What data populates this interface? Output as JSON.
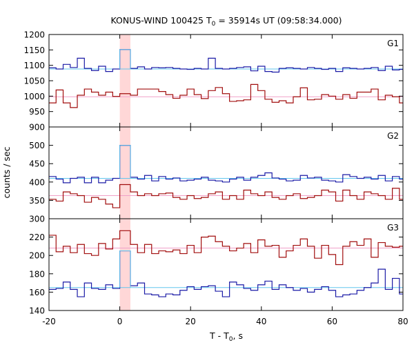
{
  "chart_data": {
    "type": "line",
    "title_main": "KONUS-WIND 100425 T",
    "title_sub": "0",
    "title_rest": " = 35914s UT (09:58:34.000)",
    "xlabel_main": "T - T",
    "xlabel_sub": "0",
    "xlabel_rest": ", s",
    "ylabel": "counts / sec",
    "xlim": [
      -20,
      80
    ],
    "x_ticks": [
      "-20",
      "0",
      "20",
      "40",
      "60",
      "80"
    ],
    "highlight_interval": [
      0,
      3
    ],
    "colors": {
      "blue": "#1a1aa6",
      "red": "#a10c0c",
      "cyan": "#62c6ee",
      "pink": "#f0a0c8",
      "highlight": "#ffd7d7"
    },
    "panels": [
      {
        "label": "G1",
        "ylim": [
          900,
          1200
        ],
        "y_ticks": [
          "900",
          "950",
          "1000",
          "1050",
          "1100",
          "1150",
          "1200"
        ],
        "bin_edges": [
          -20,
          -18,
          -16,
          -14,
          -12,
          -10,
          -8,
          -6,
          -4,
          -2,
          0,
          3,
          5,
          7,
          9,
          11,
          13,
          15,
          17,
          19,
          21,
          23,
          25,
          27,
          29,
          31,
          33,
          35,
          37,
          39,
          41,
          43,
          45,
          47,
          49,
          51,
          53,
          55,
          57,
          59,
          61,
          63,
          65,
          67,
          69,
          71,
          73,
          75,
          77,
          79,
          80
        ],
        "blue": [
          1092,
          1088,
          1103,
          1093,
          1123,
          1090,
          1083,
          1097,
          1080,
          1088,
          1151,
          1090,
          1095,
          1088,
          1093,
          1092,
          1093,
          1090,
          1088,
          1087,
          1090,
          1088,
          1123,
          1090,
          1088,
          1090,
          1093,
          1095,
          1082,
          1097,
          1080,
          1078,
          1090,
          1092,
          1090,
          1088,
          1093,
          1090,
          1087,
          1090,
          1080,
          1092,
          1090,
          1088,
          1090,
          1093,
          1083,
          1097,
          1085,
          1087
        ],
        "red": [
          978,
          1020,
          978,
          963,
          1003,
          1023,
          1013,
          1003,
          1013,
          999,
          1008,
          1003,
          1023,
          1023,
          1023,
          1015,
          1005,
          993,
          1003,
          1023,
          1005,
          992,
          1018,
          1028,
          1008,
          983,
          985,
          988,
          1038,
          1018,
          990,
          980,
          985,
          978,
          998,
          1027,
          988,
          990,
          1005,
          1000,
          990,
          1005,
          993,
          1013,
          1013,
          1023,
          988,
          1003,
          998,
          978
        ],
        "blue_fit": 1088,
        "red_fit": 998
      },
      {
        "label": "G2",
        "ylim": [
          300,
          550
        ],
        "y_ticks": [
          "300",
          "350",
          "400",
          "450",
          "500"
        ],
        "bin_edges": [
          -20,
          -18,
          -16,
          -14,
          -12,
          -10,
          -8,
          -6,
          -4,
          -2,
          0,
          3,
          5,
          7,
          9,
          11,
          13,
          15,
          17,
          19,
          21,
          23,
          25,
          27,
          29,
          31,
          33,
          35,
          37,
          39,
          41,
          43,
          45,
          47,
          49,
          51,
          53,
          55,
          57,
          59,
          61,
          63,
          65,
          67,
          69,
          71,
          73,
          75,
          77,
          79,
          80
        ],
        "blue": [
          415,
          408,
          398,
          410,
          413,
          398,
          413,
          398,
          405,
          410,
          500,
          413,
          408,
          418,
          403,
          415,
          408,
          411,
          403,
          405,
          408,
          413,
          405,
          403,
          400,
          408,
          413,
          405,
          413,
          418,
          425,
          411,
          408,
          403,
          405,
          418,
          411,
          413,
          405,
          403,
          400,
          420,
          415,
          410,
          413,
          408,
          418,
          403,
          415,
          408
        ],
        "red": [
          353,
          348,
          373,
          368,
          363,
          345,
          358,
          353,
          340,
          330,
          393,
          373,
          363,
          368,
          363,
          368,
          370,
          358,
          353,
          363,
          355,
          358,
          368,
          373,
          353,
          363,
          353,
          378,
          368,
          363,
          373,
          358,
          353,
          363,
          368,
          355,
          358,
          363,
          378,
          373,
          348,
          378,
          363,
          353,
          373,
          368,
          363,
          353,
          383,
          353
        ],
        "blue_fit": 410,
        "red_fit": 363
      },
      {
        "label": "G3",
        "ylim": [
          140,
          240
        ],
        "y_ticks": [
          "140",
          "160",
          "180",
          "200",
          "220"
        ],
        "bin_edges": [
          -20,
          -18,
          -16,
          -14,
          -12,
          -10,
          -8,
          -6,
          -4,
          -2,
          0,
          3,
          5,
          7,
          9,
          11,
          13,
          15,
          17,
          19,
          21,
          23,
          25,
          27,
          29,
          31,
          33,
          35,
          37,
          39,
          41,
          43,
          45,
          47,
          49,
          51,
          53,
          55,
          57,
          59,
          61,
          63,
          65,
          67,
          69,
          71,
          73,
          75,
          77,
          79,
          80
        ],
        "blue": [
          163,
          164,
          171,
          163,
          155,
          170,
          164,
          163,
          168,
          164,
          205,
          167,
          170,
          158,
          157,
          155,
          158,
          157,
          162,
          166,
          163,
          166,
          167,
          161,
          155,
          171,
          168,
          164,
          162,
          168,
          172,
          163,
          168,
          165,
          162,
          164,
          160,
          163,
          166,
          162,
          155,
          157,
          158,
          162,
          165,
          170,
          185,
          163,
          175,
          158
        ],
        "red": [
          222,
          204,
          210,
          203,
          212,
          202,
          200,
          213,
          207,
          218,
          227,
          212,
          203,
          212,
          202,
          205,
          204,
          206,
          202,
          211,
          203,
          220,
          221,
          215,
          210,
          205,
          208,
          213,
          203,
          217,
          210,
          211,
          198,
          205,
          211,
          218,
          210,
          197,
          211,
          201,
          190,
          210,
          215,
          211,
          218,
          198,
          214,
          210,
          209,
          210
        ],
        "blue_fit": 165,
        "red_fit": 208
      }
    ]
  }
}
